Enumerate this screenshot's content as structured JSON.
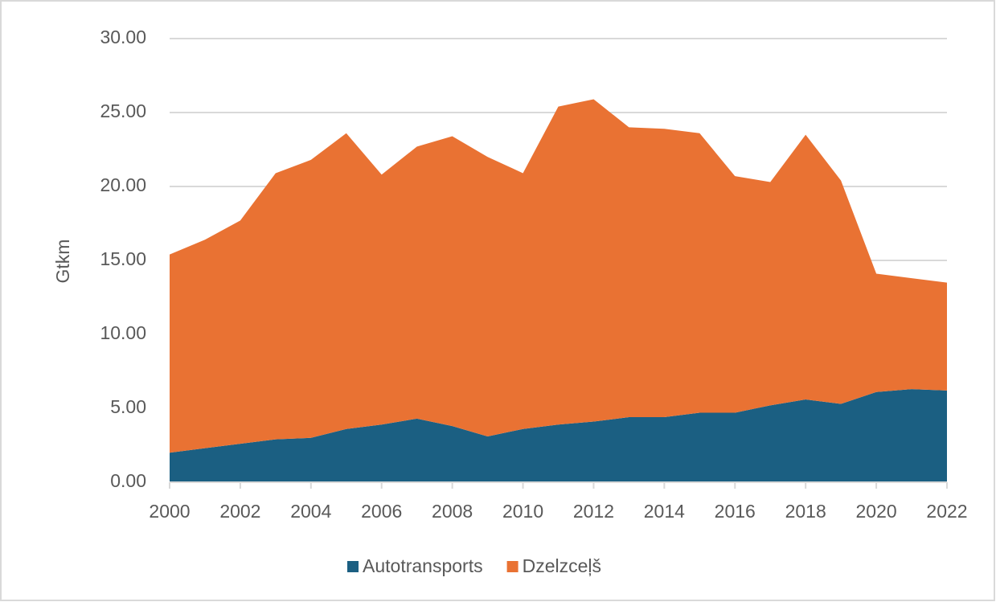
{
  "chart_data": {
    "type": "stacked_area",
    "y_label": "Gtkm",
    "x": [
      2000,
      2001,
      2002,
      2003,
      2004,
      2005,
      2006,
      2007,
      2008,
      2009,
      2010,
      2011,
      2012,
      2013,
      2014,
      2015,
      2016,
      2017,
      2018,
      2019,
      2020,
      2021,
      2022
    ],
    "series": [
      {
        "name": "Autotransports",
        "color": "#1b5f82",
        "values": [
          2.0,
          2.3,
          2.6,
          2.9,
          3.0,
          3.6,
          3.9,
          4.3,
          3.8,
          3.1,
          3.6,
          3.9,
          4.1,
          4.4,
          4.4,
          4.7,
          4.7,
          5.2,
          5.6,
          5.3,
          6.1,
          6.3,
          6.2
        ]
      },
      {
        "name": "Dzelzceļš",
        "color": "#e97233",
        "values": [
          13.4,
          14.1,
          15.1,
          18.0,
          18.8,
          20.0,
          16.9,
          18.4,
          19.6,
          18.9,
          17.3,
          21.5,
          21.8,
          19.6,
          19.5,
          18.9,
          16.0,
          15.1,
          17.9,
          15.1,
          8.0,
          7.5,
          7.3
        ]
      }
    ],
    "xlim": [
      2000,
      2022
    ],
    "xticks": [
      2000,
      2002,
      2004,
      2006,
      2008,
      2010,
      2012,
      2014,
      2016,
      2018,
      2020,
      2022
    ],
    "ylim": [
      0,
      30
    ],
    "yticks": [
      {
        "value": 0,
        "label": "0.00"
      },
      {
        "value": 5,
        "label": "5.00"
      },
      {
        "value": 10,
        "label": "10.00"
      },
      {
        "value": 15,
        "label": "15.00"
      },
      {
        "value": 20,
        "label": "20.00"
      },
      {
        "value": 25,
        "label": "25.00"
      },
      {
        "value": 30,
        "label": "30.00"
      }
    ],
    "grid": true,
    "legend": "bottom"
  }
}
